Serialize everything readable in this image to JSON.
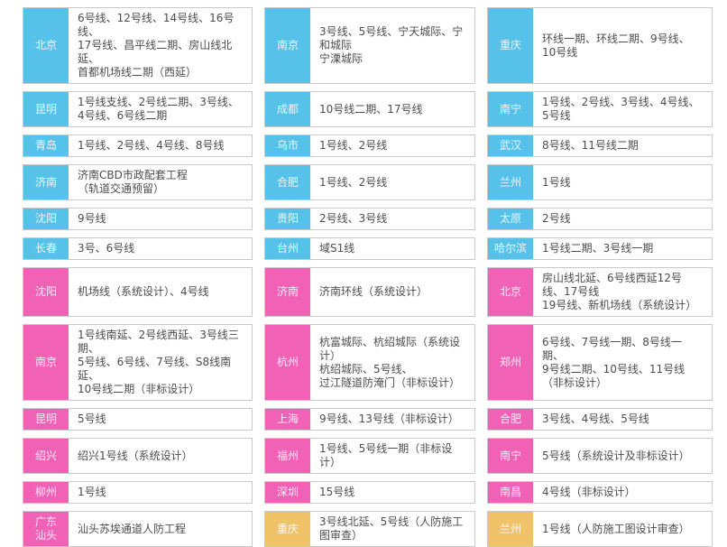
{
  "colors": {
    "blue": "#56c2ea",
    "pink": "#f161b6",
    "yellow": "#f0c369",
    "border": "#c9c9c9",
    "text": "#4c4c4c"
  },
  "legend": {
    "blue_group": "blue",
    "pink_group": "pink",
    "yellow_group": "yellow"
  },
  "columns": [
    {
      "cards": [
        {
          "city": "北京",
          "color": "blue",
          "lines": "6号线、12号线、14号线、16号线、\n17号线、昌平线二期、房山线北延、\n首都机场线二期（西延）"
        },
        {
          "city": "昆明",
          "color": "blue",
          "lines": "1号线支线、2号线二期、3号线、\n4号线、6号线二期"
        },
        {
          "city": "青岛",
          "color": "blue",
          "lines": "1号线、2号线、4号线、8号线"
        },
        {
          "city": "济南",
          "color": "blue",
          "lines": "济南CBD市政配套工程\n（轨道交通预留）"
        },
        {
          "city": "沈阳",
          "color": "blue",
          "lines": "9号线"
        },
        {
          "city": "长春",
          "color": "blue",
          "lines": "3号、6号线"
        },
        {
          "city": "沈阳",
          "color": "pink",
          "lines": "机场线（系统设计）、4号线"
        },
        {
          "city": "南京",
          "color": "pink",
          "lines": "1号线南延、2号线西延、3号线三期、\n5号线、6号线、7号线、S8线南延、\n10号线二期（非标设计）"
        },
        {
          "city": "昆明",
          "color": "pink",
          "lines": "5号线"
        },
        {
          "city": "绍兴",
          "color": "pink",
          "lines": "绍兴1号线（系统设计）"
        },
        {
          "city": "柳州",
          "color": "pink",
          "lines": "1号线"
        },
        {
          "city": "广东\n汕头",
          "color": "pink",
          "lines": "汕头苏埃通道人防工程"
        }
      ]
    },
    {
      "cards": [
        {
          "city": "南京",
          "color": "blue",
          "lines": "3号线、5号线、宁天城际、宁和城际\n宁溧城际"
        },
        {
          "city": "成都",
          "color": "blue",
          "lines": "10号线二期、17号线"
        },
        {
          "city": "乌市",
          "color": "blue",
          "lines": "1号线、2号线"
        },
        {
          "city": "合肥",
          "color": "blue",
          "lines": "1号线、2号线"
        },
        {
          "city": "贵阳",
          "color": "blue",
          "lines": "2号线、3号线"
        },
        {
          "city": "台州",
          "color": "blue",
          "lines": "域S1线"
        },
        {
          "city": "济南",
          "color": "pink",
          "lines": "济南环线（系统设计）"
        },
        {
          "city": "杭州",
          "color": "pink",
          "lines": "杭富城际、杭绍城际（系统设计）\n杭绍城际、5号线、\n过江隧道防淹门（非标设计）"
        },
        {
          "city": "上海",
          "color": "pink",
          "lines": "9号线、13号线（非标设计）"
        },
        {
          "city": "福州",
          "color": "pink",
          "lines": "1号线、5号线一期（非标设计）"
        },
        {
          "city": "深圳",
          "color": "pink",
          "lines": "15号线"
        },
        {
          "city": "重庆",
          "color": "yellow",
          "lines": "3号线北延、5号线（人防施工图审查）"
        }
      ]
    },
    {
      "cards": [
        {
          "city": "重庆",
          "color": "blue",
          "lines": "环线一期、环线二期、9号线、\n10号线"
        },
        {
          "city": "南宁",
          "color": "blue",
          "lines": "1号线、2号线、3号线、4号线、5号线"
        },
        {
          "city": "武汉",
          "color": "blue",
          "lines": "8号线、11号线二期"
        },
        {
          "city": "兰州",
          "color": "blue",
          "lines": "1号线"
        },
        {
          "city": "太原",
          "color": "blue",
          "lines": "2号线"
        },
        {
          "city": "哈尔滨",
          "color": "blue",
          "lines": "1号线二期、3号线一期"
        },
        {
          "city": "北京",
          "color": "pink",
          "lines": "房山线北延、6号线西延12号线、17号线\n19号线、新机场线（系统设计）"
        },
        {
          "city": "郑州",
          "color": "pink",
          "lines": "6号线、7号线一期、8号线一期、\n9号线二期、10号线、11号线\n（非标设计）"
        },
        {
          "city": "合肥",
          "color": "pink",
          "lines": "3号线、4号线、5号线"
        },
        {
          "city": "南宁",
          "color": "pink",
          "lines": "5号线（系统设计及非标设计）"
        },
        {
          "city": "南昌",
          "color": "pink",
          "lines": "4号线（非标设计）"
        },
        {
          "city": "兰州",
          "color": "yellow",
          "lines": "1号线（人防施工图设计审查）"
        }
      ]
    }
  ]
}
